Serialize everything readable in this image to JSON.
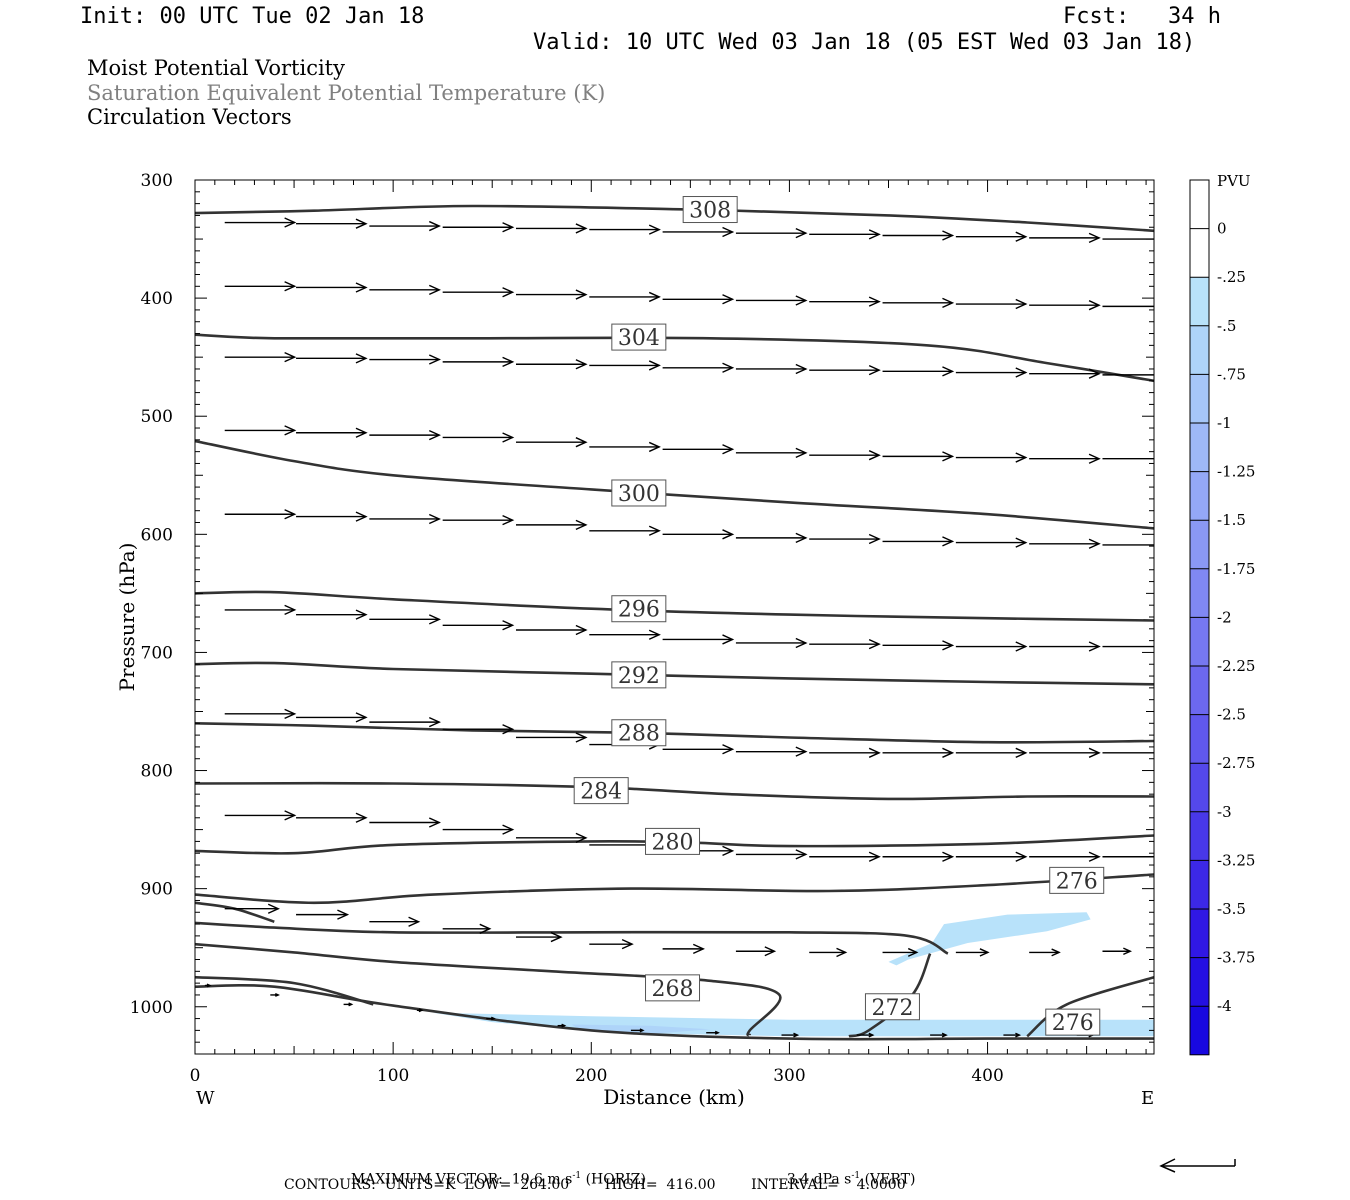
{
  "header": {
    "init": "Init: 00 UTC Tue 02 Jan 18",
    "fcst_label": "Fcst:",
    "fcst_value": "34 h",
    "valid": "Valid: 10 UTC Wed 03 Jan 18 (05 EST Wed 03 Jan 18)"
  },
  "titles": {
    "line1": "Moist Potential Vorticity",
    "line2": "Saturation Equivalent Potential Temperature (K)",
    "line3": "Circulation Vectors"
  },
  "colors": {
    "contour": "#333333",
    "vector": "#000000",
    "title2": "#808080"
  },
  "chart_data": {
    "type": "cross-section",
    "xlabel": "Distance (km)",
    "ylabel": "Pressure (hPa)",
    "xlim": [
      0,
      484
    ],
    "ylim": [
      300,
      1040
    ],
    "x_ticks": [
      0,
      100,
      200,
      300,
      400
    ],
    "y_ticks": [
      300,
      400,
      500,
      600,
      700,
      800,
      900,
      1000
    ],
    "x_end_labels": {
      "left": "W",
      "right": "E"
    },
    "grid": false,
    "contours": [
      {
        "label": "308",
        "points": [
          [
            0,
            328
          ],
          [
            60,
            326
          ],
          [
            140,
            322
          ],
          [
            250,
            325
          ],
          [
            350,
            330
          ],
          [
            420,
            336
          ],
          [
            484,
            343
          ]
        ]
      },
      {
        "label": "304",
        "points": [
          [
            0,
            431
          ],
          [
            40,
            434
          ],
          [
            140,
            434
          ],
          [
            260,
            434
          ],
          [
            370,
            440
          ],
          [
            430,
            455
          ],
          [
            484,
            470
          ]
        ]
      },
      {
        "label": "300",
        "points": [
          [
            0,
            521
          ],
          [
            50,
            538
          ],
          [
            100,
            550
          ],
          [
            200,
            562
          ],
          [
            300,
            573
          ],
          [
            400,
            583
          ],
          [
            484,
            595
          ]
        ]
      },
      {
        "label": "296",
        "points": [
          [
            0,
            650
          ],
          [
            40,
            649
          ],
          [
            100,
            655
          ],
          [
            200,
            663
          ],
          [
            300,
            668
          ],
          [
            400,
            671
          ],
          [
            484,
            673
          ]
        ]
      },
      {
        "label": "292",
        "points": [
          [
            0,
            710
          ],
          [
            40,
            709
          ],
          [
            100,
            714
          ],
          [
            200,
            718
          ],
          [
            300,
            722
          ],
          [
            400,
            725
          ],
          [
            484,
            727
          ]
        ]
      },
      {
        "label": "288",
        "points": [
          [
            0,
            760
          ],
          [
            60,
            762
          ],
          [
            140,
            766
          ],
          [
            220,
            768
          ],
          [
            300,
            772
          ],
          [
            400,
            776
          ],
          [
            484,
            775
          ]
        ]
      },
      {
        "label": "284",
        "points": [
          [
            0,
            811
          ],
          [
            100,
            811
          ],
          [
            200,
            814
          ],
          [
            270,
            820
          ],
          [
            350,
            824
          ],
          [
            420,
            822
          ],
          [
            484,
            822
          ]
        ]
      },
      {
        "label": "280",
        "points": [
          [
            0,
            868
          ],
          [
            50,
            870
          ],
          [
            100,
            863
          ],
          [
            200,
            860
          ],
          [
            250,
            861
          ],
          [
            300,
            864
          ],
          [
            400,
            862
          ],
          [
            484,
            855
          ]
        ]
      },
      {
        "label": "276",
        "points": [
          [
            0,
            905
          ],
          [
            60,
            912
          ],
          [
            120,
            905
          ],
          [
            220,
            900
          ],
          [
            320,
            902
          ],
          [
            400,
            897
          ],
          [
            484,
            888
          ]
        ]
      },
      {
        "label": "",
        "points": [
          [
            0,
            929
          ],
          [
            40,
            933
          ],
          [
            100,
            937
          ],
          [
            200,
            937
          ],
          [
            300,
            937
          ],
          [
            360,
            940
          ],
          [
            380,
            955
          ]
        ]
      },
      {
        "label": "",
        "points": [
          [
            0,
            912
          ],
          [
            20,
            917
          ],
          [
            40,
            928
          ]
        ]
      },
      {
        "label": "",
        "points": [
          [
            0,
            947
          ],
          [
            50,
            954
          ],
          [
            100,
            962
          ],
          [
            180,
            970
          ],
          [
            260,
            978
          ],
          [
            295,
            990
          ],
          [
            280,
            1020
          ],
          [
            280,
            1024
          ]
        ]
      },
      {
        "label": "272",
        "points": [
          [
            371,
            955
          ],
          [
            362,
            990
          ],
          [
            340,
            1020
          ],
          [
            330,
            1025
          ]
        ]
      },
      {
        "label": "",
        "points": [
          [
            0,
            975
          ],
          [
            50,
            980
          ],
          [
            90,
            998
          ]
        ]
      },
      {
        "label": "",
        "points": [
          [
            0,
            983
          ],
          [
            40,
            983
          ],
          [
            100,
            999
          ],
          [
            200,
            1020
          ],
          [
            300,
            1027
          ],
          [
            400,
            1027
          ],
          [
            484,
            1027
          ]
        ]
      },
      {
        "label": "276",
        "points": [
          [
            484,
            975
          ],
          [
            440,
            998
          ],
          [
            420,
            1025
          ]
        ]
      }
    ],
    "contour_labels": [
      {
        "text": "308",
        "x": 260,
        "p": 325
      },
      {
        "text": "304",
        "x": 224,
        "p": 433
      },
      {
        "text": "300",
        "x": 224,
        "p": 565
      },
      {
        "text": "296",
        "x": 224,
        "p": 663
      },
      {
        "text": "292",
        "x": 224,
        "p": 719
      },
      {
        "text": "288",
        "x": 224,
        "p": 768
      },
      {
        "text": "284",
        "x": 205,
        "p": 817
      },
      {
        "text": "280",
        "x": 241,
        "p": 860
      },
      {
        "text": "276",
        "x": 445,
        "p": 893
      },
      {
        "text": "268",
        "x": 241,
        "p": 984
      },
      {
        "text": "272",
        "x": 352,
        "p": 1000
      },
      {
        "text": "276",
        "x": 443,
        "p": 1013
      }
    ],
    "shaded_regions": [
      {
        "value": -0.25,
        "points": [
          [
            350,
            962
          ],
          [
            372,
            946
          ],
          [
            378,
            930
          ],
          [
            410,
            922
          ],
          [
            450,
            920
          ],
          [
            452,
            926
          ],
          [
            430,
            936
          ],
          [
            390,
            946
          ],
          [
            360,
            960
          ],
          [
            354,
            965
          ]
        ]
      },
      {
        "value": -0.25,
        "points": [
          [
            120,
            1005
          ],
          [
            200,
            1008
          ],
          [
            300,
            1011
          ],
          [
            400,
            1011
          ],
          [
            484,
            1011
          ],
          [
            484,
            1025
          ],
          [
            400,
            1025
          ],
          [
            300,
            1025
          ],
          [
            210,
            1022
          ],
          [
            150,
            1013
          ]
        ]
      },
      {
        "value": -0.5,
        "points": [
          [
            190,
            1015
          ],
          [
            230,
            1016
          ],
          [
            260,
            1019
          ],
          [
            230,
            1023
          ],
          [
            195,
            1020
          ]
        ]
      }
    ],
    "vector_rows": [
      {
        "p": [
          336,
          337,
          339,
          340,
          341,
          342,
          344,
          345,
          346,
          347,
          348,
          349,
          350,
          351
        ]
      },
      {
        "p": [
          390,
          391,
          393,
          395,
          397,
          399,
          401,
          402,
          403,
          404,
          405,
          406,
          407,
          408
        ]
      },
      {
        "p": [
          450,
          451,
          452,
          454,
          456,
          457,
          459,
          460,
          461,
          462,
          463,
          464,
          465,
          466
        ]
      },
      {
        "p": [
          512,
          514,
          516,
          518,
          522,
          526,
          528,
          531,
          533,
          534,
          535,
          536,
          536,
          537
        ]
      },
      {
        "p": [
          583,
          585,
          587,
          588,
          592,
          597,
          600,
          603,
          604,
          606,
          607,
          608,
          609,
          611
        ]
      },
      {
        "p": [
          664,
          668,
          672,
          677,
          681,
          685,
          689,
          692,
          693,
          694,
          695,
          695,
          695,
          695
        ]
      },
      {
        "p": [
          752,
          755,
          759,
          765,
          772,
          778,
          782,
          784,
          785,
          785,
          785,
          785,
          785,
          784
        ]
      },
      {
        "p": [
          838,
          840,
          844,
          850,
          857,
          863,
          868,
          871,
          873,
          873,
          873,
          873,
          873,
          873
        ]
      },
      {
        "p": [
          917,
          922,
          928,
          934,
          941,
          947,
          951,
          953,
          954,
          954,
          954,
          954,
          953,
          952
        ]
      }
    ],
    "vector_x": [
      15,
      51,
      88,
      125,
      162,
      199,
      236,
      273,
      310,
      347,
      384,
      421,
      458,
      482
    ],
    "near_surface_vectors": [
      {
        "x": 5,
        "p": 982,
        "len": 5
      },
      {
        "x": 38,
        "p": 990,
        "len": 8
      },
      {
        "x": 75,
        "p": 998,
        "len": 8
      },
      {
        "x": 112,
        "p": 1003,
        "len": 5
      },
      {
        "x": 147,
        "p": 1010,
        "len": 8
      },
      {
        "x": 183,
        "p": 1016,
        "len": 7
      },
      {
        "x": 220,
        "p": 1020,
        "len": 12
      },
      {
        "x": 258,
        "p": 1022,
        "len": 12
      },
      {
        "x": 296,
        "p": 1024,
        "len": 16
      },
      {
        "x": 334,
        "p": 1024,
        "len": 16
      },
      {
        "x": 371,
        "p": 1024,
        "len": 16
      },
      {
        "x": 408,
        "p": 1024,
        "len": 16
      },
      {
        "x": 445,
        "p": 1024,
        "len": 16
      }
    ],
    "colorbar": {
      "title": "PVU",
      "labels": [
        "0",
        "-.25",
        "-.5",
        "-.75",
        "-1",
        "-1.25",
        "-1.5",
        "-1.75",
        "-2",
        "-2.25",
        "-2.5",
        "-2.75",
        "-3",
        "-3.25",
        "-3.5",
        "-3.75",
        "-4"
      ],
      "colors": [
        "#ffffff",
        "#ffffff",
        "#b8e2fa",
        "#aed4f9",
        "#a6c6f8",
        "#9eb8f7",
        "#94a8f6",
        "#8a98f4",
        "#8088f3",
        "#7678f1",
        "#6c68ef",
        "#6058ed",
        "#5448eb",
        "#4838e9",
        "#3c28e6",
        "#3018e4",
        "#2410e2",
        "#1808e0"
      ]
    }
  },
  "footer": {
    "max_vector_label": "MAXIMUM VECTOR:",
    "max_vector_horiz": "19.6 m s",
    "horiz_suffix": " (HORIZ)",
    "max_vector_vert": "3.4 dPa s",
    "vert_suffix": " (VERT)",
    "exp": "-1",
    "contours_line": "CONTOURS:  UNITS=K  LOW=  264.00        HIGH=  416.00        INTERVAL=    4.0000"
  }
}
